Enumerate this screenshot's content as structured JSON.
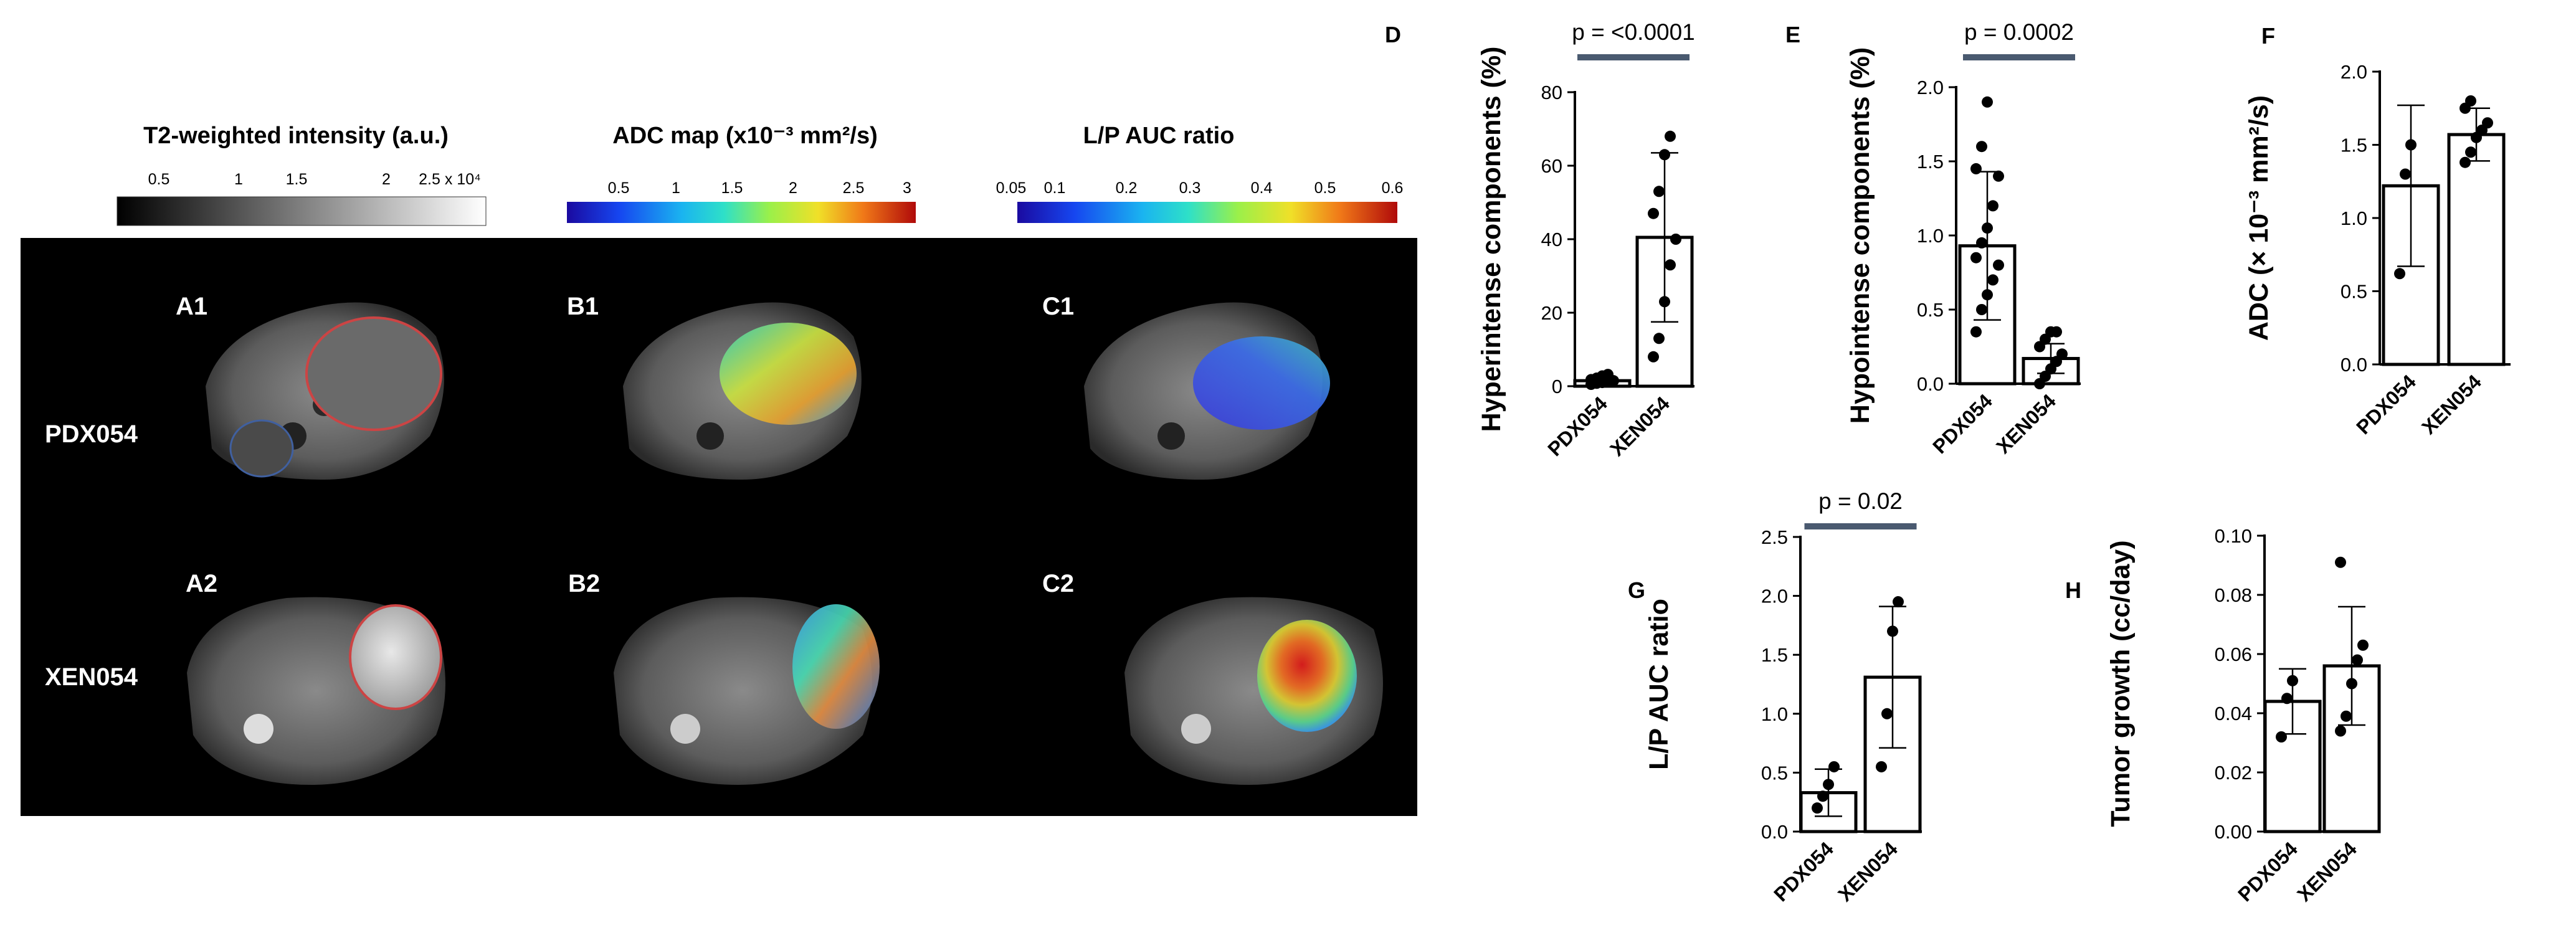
{
  "colorbars": [
    {
      "title": "T2-weighted intensity (a.u.)",
      "ticks": [
        "0.5",
        "1",
        "1.5",
        "2",
        "2.5 x 10⁴"
      ],
      "scale": "gray"
    },
    {
      "title": "ADC map (x10⁻³ mm²/s)",
      "ticks": [
        "0.5",
        "1",
        "1.5",
        "2",
        "2.5",
        "3"
      ],
      "scale": "jet"
    },
    {
      "title": "L/P AUC ratio",
      "ticks": [
        "0.05",
        "0.1",
        "0.2",
        "0.3",
        "0.4",
        "0.5",
        "0.6"
      ],
      "scale": "jet"
    }
  ],
  "image_panels": {
    "row_labels": [
      "PDX054",
      "XEN054"
    ],
    "panel_labels": [
      "A1",
      "B1",
      "C1",
      "A2",
      "B2",
      "C2"
    ]
  },
  "chart_data": [
    {
      "letter": "D",
      "type": "bar",
      "categories": [
        "PDX054",
        "XEN054"
      ],
      "values": [
        1.5,
        40.5
      ],
      "sd": [
        1.0,
        23.0
      ],
      "points": [
        [
          0.5,
          0.8,
          1.0,
          1.2,
          1.5,
          1.8,
          2.2,
          2.8,
          3.2
        ],
        [
          8,
          13,
          23,
          33,
          40,
          47,
          53,
          63,
          68
        ]
      ],
      "ylabel": "Hyperintense components (%)",
      "ylim": [
        0,
        80
      ],
      "yticks": [
        "0",
        "20",
        "40",
        "60",
        "80"
      ],
      "annotation": "p = <0.0001"
    },
    {
      "letter": "E",
      "type": "bar",
      "categories": [
        "PDX054",
        "XEN054"
      ],
      "values": [
        0.93,
        0.17
      ],
      "sd": [
        0.5,
        0.1
      ],
      "points": [
        [
          0.35,
          0.5,
          0.6,
          0.7,
          0.8,
          0.85,
          0.95,
          1.05,
          1.2,
          1.4,
          1.45,
          1.6,
          1.9
        ],
        [
          0.0,
          0.05,
          0.1,
          0.15,
          0.2,
          0.25,
          0.3,
          0.35,
          0.35
        ]
      ],
      "ylabel": "Hypointense components (%)",
      "ylim": [
        0,
        2.0
      ],
      "yticks": [
        "0.0",
        "0.5",
        "1.0",
        "1.5",
        "2.0"
      ],
      "annotation": "p = 0.0002"
    },
    {
      "letter": "F",
      "type": "bar",
      "categories": [
        "PDX054",
        "XEN054"
      ],
      "values": [
        1.22,
        1.57
      ],
      "sd": [
        0.55,
        0.18
      ],
      "points": [
        [
          0.62,
          1.3,
          1.5
        ],
        [
          1.38,
          1.45,
          1.55,
          1.6,
          1.65,
          1.75,
          1.8
        ]
      ],
      "ylabel": "ADC (× 10⁻³ mm²/s)",
      "ylim": [
        0,
        2.0
      ],
      "yticks": [
        "0.0",
        "0.5",
        "1.0",
        "1.5",
        "2.0"
      ],
      "annotation": ""
    },
    {
      "letter": "G",
      "type": "bar",
      "categories": [
        "PDX054",
        "XEN054"
      ],
      "values": [
        0.33,
        1.31
      ],
      "sd": [
        0.2,
        0.6
      ],
      "points": [
        [
          0.2,
          0.3,
          0.4,
          0.55
        ],
        [
          0.55,
          1.0,
          1.7,
          1.95
        ]
      ],
      "ylabel": "L/P AUC ratio",
      "ylim": [
        0,
        2.5
      ],
      "yticks": [
        "0.0",
        "0.5",
        "1.0",
        "1.5",
        "2.0",
        "2.5"
      ],
      "annotation": "p = 0.02"
    },
    {
      "letter": "H",
      "type": "bar",
      "categories": [
        "PDX054",
        "XEN054"
      ],
      "values": [
        0.044,
        0.056
      ],
      "sd": [
        0.011,
        0.02
      ],
      "points": [
        [
          0.032,
          0.045,
          0.051
        ],
        [
          0.034,
          0.039,
          0.05,
          0.058,
          0.063,
          0.091
        ]
      ],
      "ylabel": "Tumor growth (cc/day)",
      "ylim": [
        0,
        0.1
      ],
      "yticks": [
        "0.00",
        "0.02",
        "0.04",
        "0.06",
        "0.08",
        "0.10"
      ],
      "annotation": ""
    }
  ]
}
